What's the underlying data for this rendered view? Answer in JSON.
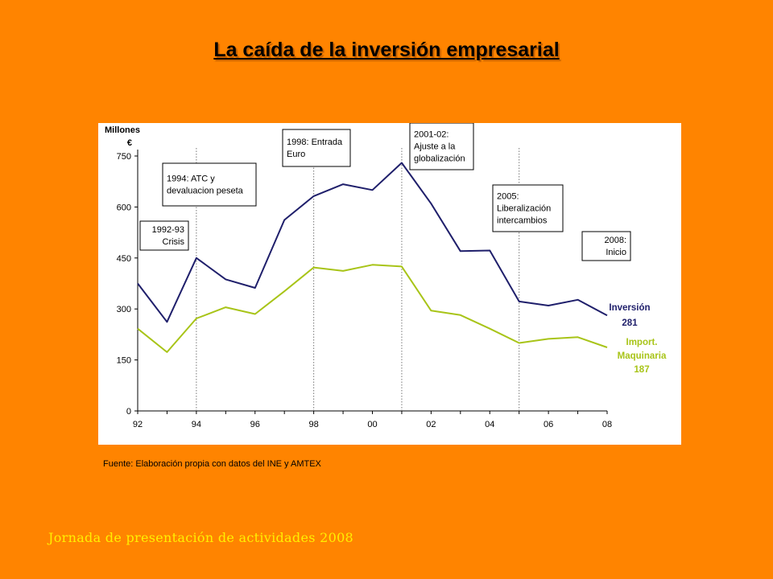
{
  "slide": {
    "title": "La caída de la inversión empresarial",
    "source": "Fuente: Elaboración propia con datos del INE y AMTEX",
    "footer": "Jornada de presentación de actividades 2008"
  },
  "colors": {
    "background": "#FF8400",
    "inversion": "#1F1F6B",
    "maquinaria": "#A8C418",
    "footer": "#FFF000"
  },
  "chart_data": {
    "type": "line",
    "ylabel": [
      "Millones",
      "€"
    ],
    "ylim": [
      0,
      750
    ],
    "yticks": [
      "0",
      "150",
      "300",
      "450",
      "600",
      "750"
    ],
    "x": [
      1992,
      1993,
      1994,
      1995,
      1996,
      1997,
      1998,
      1999,
      2000,
      2001,
      2002,
      2003,
      2004,
      2005,
      2006,
      2007,
      2008
    ],
    "xtick_values": [
      1992,
      1994,
      1996,
      1998,
      2000,
      2002,
      2004,
      2006,
      2008
    ],
    "xtick_labels": [
      "92",
      "94",
      "96",
      "98",
      "00",
      "02",
      "04",
      "06",
      "08"
    ],
    "grid": false,
    "series": [
      {
        "name": "Inversión",
        "end_value": "281",
        "color": "#1F1F6B",
        "values": [
          375,
          262,
          450,
          387,
          362,
          562,
          632,
          667,
          650,
          730,
          610,
          470,
          472,
          322,
          310,
          327,
          281
        ]
      },
      {
        "name": "Import. Maquinaria",
        "end_value": "187",
        "color": "#A8C418",
        "values": [
          242,
          173,
          272,
          305,
          285,
          352,
          422,
          412,
          430,
          425,
          295,
          282,
          242,
          200,
          212,
          217,
          187
        ]
      }
    ],
    "event_lines": [
      1994,
      1998,
      2001,
      2005
    ],
    "annotations": [
      {
        "lines": [
          "1992-93",
          "Crisis"
        ]
      },
      {
        "lines": [
          "1994: ATC y",
          "devaluacion peseta"
        ]
      },
      {
        "lines": [
          "1998: Entrada",
          "Euro"
        ]
      },
      {
        "lines": [
          "2001-02:",
          "Ajuste a la",
          "globalización"
        ]
      },
      {
        "lines": [
          "2005:",
          "Liberalización",
          "intercambios"
        ]
      },
      {
        "lines": [
          "2008:",
          "Inicio"
        ]
      }
    ]
  }
}
